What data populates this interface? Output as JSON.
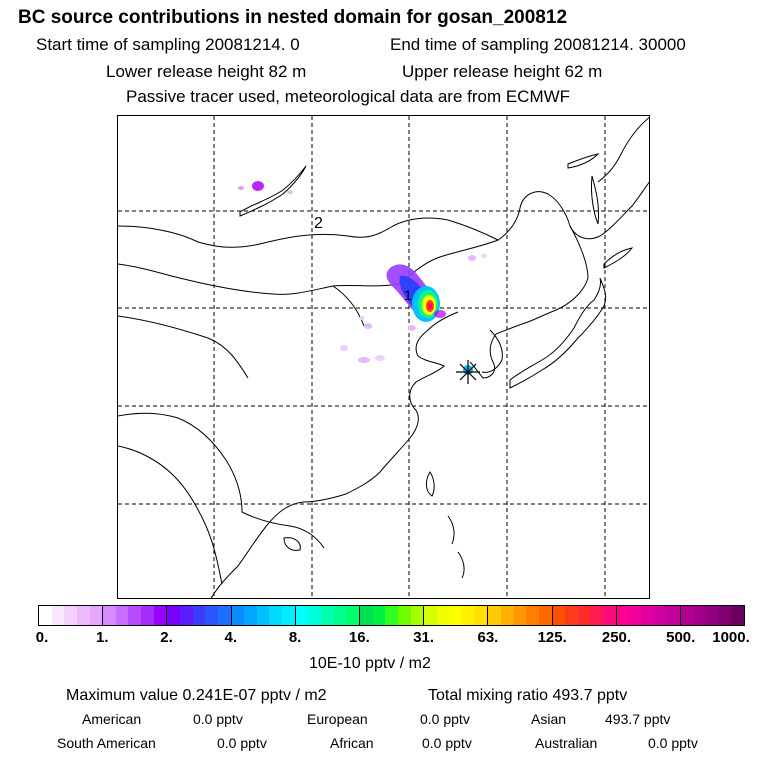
{
  "header": {
    "title": "BC  source contributions in nested domain for gosan_200812",
    "start_label": "Start time of sampling 20081214.    0",
    "end_label": "End time of sampling 20081214. 30000",
    "lower_label": "Lower release height   82 m",
    "upper_label": "Upper release height   62 m",
    "tracer_note": "Passive tracer used, meteorological data are from ECMWF"
  },
  "map": {
    "label_1": "1",
    "label_2": "2",
    "receptor_icon": "asterisk-star-icon",
    "plume_colors": [
      "#d9a0ff",
      "#b000ff",
      "#3030ff",
      "#00c0ff",
      "#00ff80",
      "#ffff00",
      "#ff4000",
      "#ff0080"
    ]
  },
  "colorbar": {
    "unit": "10E-10 pptv / m2",
    "ticks": [
      "0.",
      "1.",
      "2.",
      "4.",
      "8.",
      "16.",
      "31.",
      "63.",
      "125.",
      "250.",
      "500.",
      "1000."
    ],
    "segments": [
      [
        "#ffffff",
        "#fbe6ff",
        "#f5d0ff",
        "#eebaff",
        "#e6a6ff"
      ],
      [
        "#d68cff",
        "#c86eff",
        "#b54dff",
        "#a52bff",
        "#9a00ff"
      ],
      [
        "#7a00ff",
        "#5a1eff",
        "#3c3cff",
        "#2a55ff",
        "#1e6eff"
      ],
      [
        "#0a8cff",
        "#00a6ff",
        "#00c0ff",
        "#00d8ff",
        "#00ecff"
      ],
      [
        "#00ffff",
        "#00ffd8",
        "#00ffb0",
        "#00ff8a",
        "#00ff6a"
      ],
      [
        "#00e050",
        "#00f040",
        "#30ff20",
        "#70ff00",
        "#a6ff00"
      ],
      [
        "#d8ff00",
        "#f0ff00",
        "#ffff00",
        "#fff000",
        "#ffe000"
      ],
      [
        "#ffc800",
        "#ffb000",
        "#ff9800",
        "#ff8000",
        "#ff6a00"
      ],
      [
        "#ff5000",
        "#ff3a1e",
        "#ff2a2a",
        "#ff1a50",
        "#ff0a7a"
      ],
      [
        "#ff0090",
        "#f00098",
        "#e000a0",
        "#d000a0",
        "#c0009a"
      ],
      [
        "#b00090",
        "#a00088",
        "#900080",
        "#800070",
        "#6a0060"
      ]
    ]
  },
  "footer": {
    "max_value": "Maximum value  0.241E-07 pptv / m2",
    "total_mixing": "Total mixing ratio      493.7 pptv",
    "american": "American",
    "american_val": "0.0 pptv",
    "european": "European",
    "european_val": "0.0 pptv",
    "asian": "Asian",
    "asian_val": "493.7 pptv",
    "south_american": "South American",
    "south_american_val": "0.0 pptv",
    "african": "African",
    "african_val": "0.0 pptv",
    "australian": "Australian",
    "australian_val": "0.0 pptv"
  }
}
